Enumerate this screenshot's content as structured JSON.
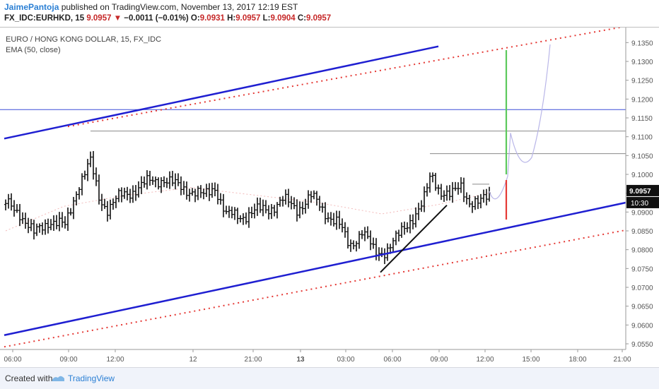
{
  "header": {
    "author": "JaimePantoja",
    "published_text": " published on TradingView.com, November 13, 2017 12:19 EST",
    "symbol_prefix": "FX_IDC:EURHKD, 15 ",
    "last": "9.0957",
    "arrow": "▼",
    "change": " −0.0011 (−0.01%)",
    "o_label": " O:",
    "o_value": "9.0931",
    "h_label": " H:",
    "h_value": "9.0957",
    "l_label": " L:",
    "l_value": "9.0904",
    "c_label": " C:",
    "c_value": "9.0957"
  },
  "legend": {
    "title": "EURO / HONG KONG DOLLAR, 15, FX_IDC",
    "indicator": "EMA (50, close)"
  },
  "footer": {
    "created_with": "Created with",
    "brand": "TradingView"
  },
  "chart_data": {
    "type": "ohlc",
    "price_axis": {
      "ticks": [
        "9.1350",
        "9.1300",
        "9.1250",
        "9.1200",
        "9.1150",
        "9.1100",
        "9.1050",
        "9.1000",
        "9.0950",
        "9.0900",
        "9.0850",
        "9.0800",
        "9.0750",
        "9.0700",
        "9.0650",
        "9.0600",
        "9.0550"
      ],
      "ylim": [
        9.0535,
        9.139
      ],
      "last_price_label": "9.0957",
      "countdown_label": "10:30"
    },
    "time_axis": {
      "labels": [
        "06:00",
        "09:00",
        "12:00",
        "12",
        "21:00",
        "13",
        "03:00",
        "06:00",
        "09:00",
        "12:00",
        "15:00",
        "18:00",
        "21:00"
      ],
      "bold_labels": [
        "13"
      ]
    },
    "colors": {
      "bars": "#111111",
      "channel": "#1f1fd1",
      "dotted": "#e53935",
      "horizontal_blue": "#3b4fd8",
      "horizontal_gray": "#8a8a8a",
      "projection": "#b9b6e8",
      "target_up": "#5cc95c",
      "stop": "#e53935",
      "ema": "#f2b8b8",
      "price_tag": "#111111"
    }
  }
}
